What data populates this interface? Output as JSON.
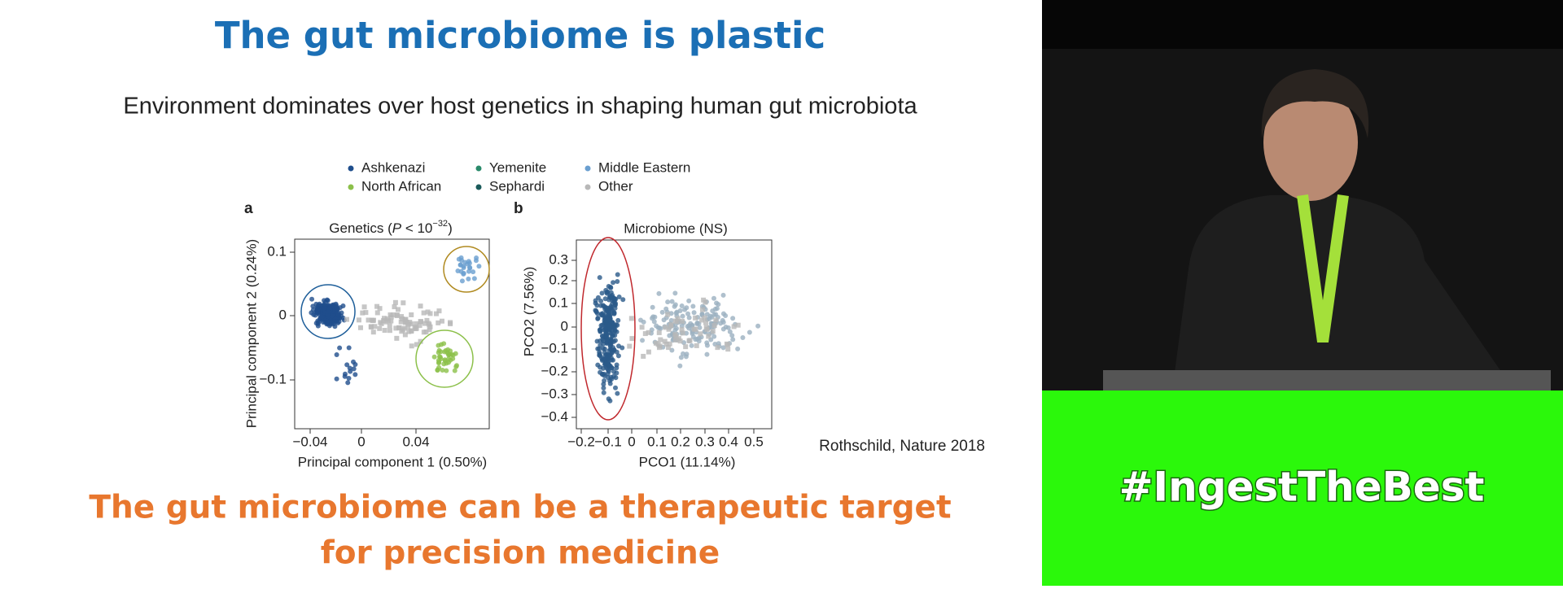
{
  "slide": {
    "title": "The gut microbiome is plastic",
    "subtitle": "Environment dominates over host genetics in shaping human gut microbiota",
    "legend": [
      "Ashkenazi",
      "Yemenite",
      "Middle Eastern",
      "North African",
      "Sephardi",
      "Other"
    ],
    "panel_a": {
      "letter": "a",
      "title": [
        "Genetics (",
        "P",
        " < 10",
        "−32",
        ")"
      ],
      "y_label": "Principal component 2 (0.24%)",
      "x_label": "Principal component 1 (0.50%)",
      "y_ticks": [
        "0.1",
        "0",
        "−0.1"
      ],
      "x_ticks": [
        "−0.04",
        "0",
        "0.04"
      ]
    },
    "panel_b": {
      "letter": "b",
      "title": "Microbiome (NS)",
      "y_label": "PCO2 (7.56%)",
      "x_label": "PCO1 (11.14%)",
      "y_ticks": [
        "0.3",
        "0.2",
        "0.1",
        "0",
        "−0.1",
        "−0.2",
        "−0.3",
        "−0.4"
      ],
      "x_ticks": [
        "−0.2",
        "−0.1",
        "0",
        "0.1",
        "0.2",
        "0.3",
        "0.4",
        "0.5"
      ]
    },
    "citation": "Rothschild, Nature 2018",
    "conclusion": [
      "The gut microbiome can be a therapeutic target",
      "for precision medicine"
    ]
  },
  "overlay": {
    "hashtag": "#IngestTheBest"
  }
}
